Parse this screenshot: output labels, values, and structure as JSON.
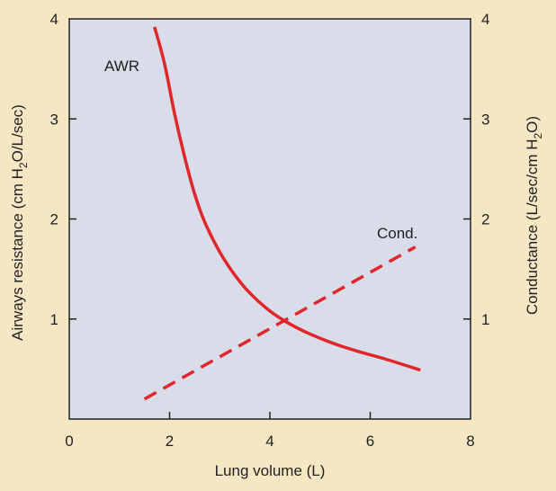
{
  "chart_data": {
    "type": "line",
    "title": "",
    "xlabel": "Lung volume (L)",
    "ylabel_left": {
      "main": "Airways resistance (cm H",
      "sub": "2",
      "rest": "O/L/sec)"
    },
    "ylabel_right": {
      "main": "Conductance (L/sec/cm H",
      "sub": "2",
      "rest": "O)"
    },
    "xlim": [
      0,
      8
    ],
    "ylim": [
      0,
      4
    ],
    "x_ticks": [
      "0",
      "2",
      "4",
      "6",
      "8"
    ],
    "y_ticks_left": [
      "1",
      "2",
      "3",
      "4"
    ],
    "y_ticks_right": [
      "1",
      "2",
      "3",
      "4"
    ],
    "grid": false,
    "series": [
      {
        "label": "AWR",
        "axis": "left",
        "style": "solid",
        "color": "#e0262b",
        "points": [
          [
            1.7,
            3.92
          ],
          [
            1.9,
            3.55
          ],
          [
            2.1,
            3.05
          ],
          [
            2.3,
            2.62
          ],
          [
            2.5,
            2.25
          ],
          [
            2.7,
            1.97
          ],
          [
            3.0,
            1.67
          ],
          [
            3.3,
            1.44
          ],
          [
            3.6,
            1.26
          ],
          [
            4.0,
            1.08
          ],
          [
            4.4,
            0.95
          ],
          [
            4.8,
            0.85
          ],
          [
            5.3,
            0.75
          ],
          [
            5.8,
            0.67
          ],
          [
            6.3,
            0.6
          ],
          [
            7.0,
            0.49
          ]
        ]
      },
      {
        "label": "Cond.",
        "axis": "right",
        "style": "dashed",
        "color": "#e0262b",
        "points": [
          [
            1.5,
            0.2
          ],
          [
            6.9,
            1.72
          ]
        ]
      }
    ],
    "plot_background": "#d9dce9",
    "page_background": "#f6e7c4"
  }
}
